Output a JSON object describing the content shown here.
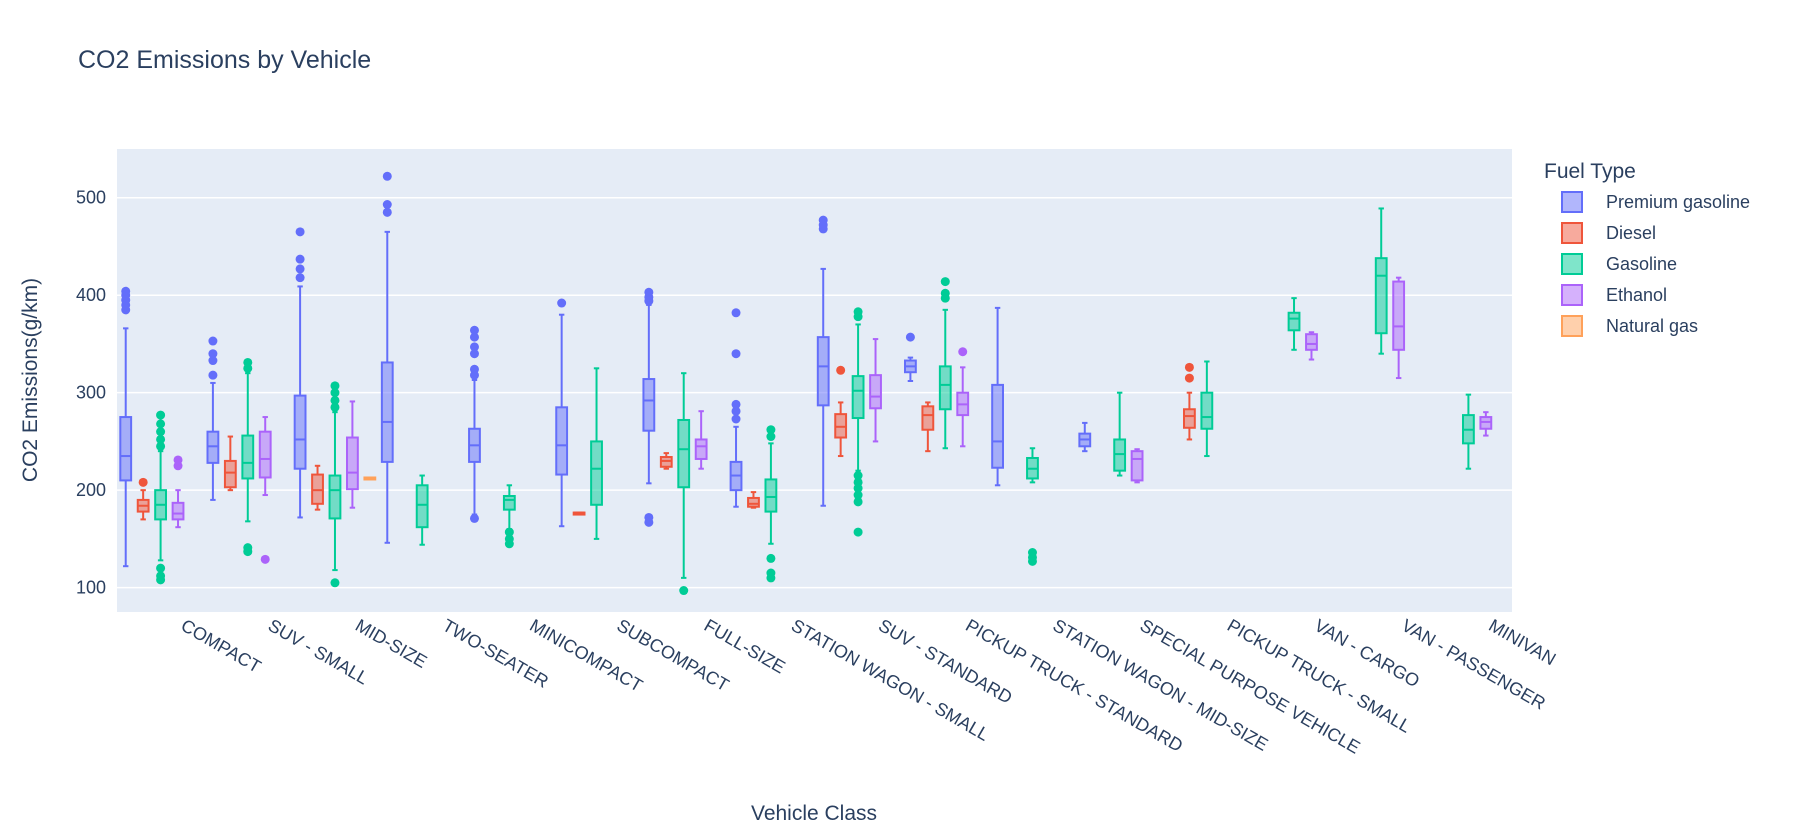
{
  "chart_data": {
    "type": "box",
    "title": "CO2 Emissions by Vehicle",
    "xlabel": "Vehicle Class",
    "ylabel": "CO2 Emissions(g/km)",
    "ylim": [
      75,
      550
    ],
    "yticks": [
      100,
      200,
      300,
      400,
      500
    ],
    "grid": true,
    "legend_title": "Fuel Type",
    "legend_position": "top-right",
    "categories": [
      "COMPACT",
      "SUV - SMALL",
      "MID-SIZE",
      "TWO-SEATER",
      "MINICOMPACT",
      "SUBCOMPACT",
      "FULL-SIZE",
      "STATION WAGON - SMALL",
      "SUV - STANDARD",
      "PICKUP TRUCK - STANDARD",
      "STATION WAGON - MID-SIZE",
      "SPECIAL PURPOSE VEHICLE",
      "PICKUP TRUCK - SMALL",
      "VAN - CARGO",
      "VAN - PASSENGER",
      "MINIVAN"
    ],
    "series": [
      {
        "name": "Premium gasoline",
        "color": "#636efa",
        "boxes": [
          {
            "category": "COMPACT",
            "min": 122,
            "q1": 210,
            "median": 235,
            "q3": 275,
            "max": 366,
            "outliers": [
              385,
              390,
              395,
              400,
              404
            ]
          },
          {
            "category": "SUV - SMALL",
            "min": 190,
            "q1": 228,
            "median": 245,
            "q3": 260,
            "max": 310,
            "outliers": [
              318,
              333,
              340,
              353
            ]
          },
          {
            "category": "MID-SIZE",
            "min": 172,
            "q1": 222,
            "median": 252,
            "q3": 297,
            "max": 409,
            "outliers": [
              418,
              427,
              437,
              465
            ]
          },
          {
            "category": "TWO-SEATER",
            "min": 146,
            "q1": 229,
            "median": 270,
            "q3": 331,
            "max": 465,
            "outliers": [
              485,
              493,
              522
            ]
          },
          {
            "category": "MINICOMPACT",
            "min": 175,
            "q1": 229,
            "median": 246,
            "q3": 263,
            "max": 313,
            "outliers": [
              171,
              318,
              324,
              340,
              347,
              357,
              364
            ]
          },
          {
            "category": "SUBCOMPACT",
            "min": 163,
            "q1": 216,
            "median": 246,
            "q3": 285,
            "max": 380,
            "outliers": [
              392
            ]
          },
          {
            "category": "FULL-SIZE",
            "min": 207,
            "q1": 261,
            "median": 292,
            "q3": 314,
            "max": 390,
            "outliers": [
              167,
              172,
              394,
              398,
              403
            ]
          },
          {
            "category": "STATION WAGON - SMALL",
            "min": 183,
            "q1": 200,
            "median": 215,
            "q3": 229,
            "max": 265,
            "outliers": [
              273,
              281,
              288,
              340,
              382
            ]
          },
          {
            "category": "SUV - STANDARD",
            "min": 184,
            "q1": 287,
            "median": 327,
            "q3": 357,
            "max": 427,
            "outliers": [
              468,
              472,
              477
            ]
          },
          {
            "category": "PICKUP TRUCK - STANDARD",
            "min": 312,
            "q1": 321,
            "median": 327,
            "q3": 333,
            "max": 336,
            "outliers": [
              357
            ]
          },
          {
            "category": "STATION WAGON - MID-SIZE",
            "min": 205,
            "q1": 223,
            "median": 250,
            "q3": 308,
            "max": 387,
            "outliers": []
          },
          {
            "category": "SPECIAL PURPOSE VEHICLE",
            "min": 240,
            "q1": 245,
            "median": 252,
            "q3": 258,
            "max": 269,
            "outliers": []
          }
        ]
      },
      {
        "name": "Diesel",
        "color": "#ef553b",
        "boxes": [
          {
            "category": "COMPACT",
            "min": 170,
            "q1": 178,
            "median": 184,
            "q3": 190,
            "max": 200,
            "outliers": [
              208
            ]
          },
          {
            "category": "SUV - SMALL",
            "min": 200,
            "q1": 203,
            "median": 218,
            "q3": 230,
            "max": 255,
            "outliers": []
          },
          {
            "category": "MID-SIZE",
            "min": 180,
            "q1": 186,
            "median": 200,
            "q3": 216,
            "max": 225,
            "outliers": []
          },
          {
            "category": "SUBCOMPACT",
            "min": 177,
            "q1": 177,
            "median": 177,
            "q3": 177,
            "max": 177,
            "outliers": []
          },
          {
            "category": "FULL-SIZE",
            "min": 222,
            "q1": 224,
            "median": 230,
            "q3": 234,
            "max": 238,
            "outliers": []
          },
          {
            "category": "STATION WAGON - SMALL",
            "min": 182,
            "q1": 183,
            "median": 186,
            "q3": 192,
            "max": 198,
            "outliers": []
          },
          {
            "category": "SUV - STANDARD",
            "min": 235,
            "q1": 254,
            "median": 265,
            "q3": 278,
            "max": 290,
            "outliers": [
              323
            ]
          },
          {
            "category": "PICKUP TRUCK - STANDARD",
            "min": 240,
            "q1": 262,
            "median": 277,
            "q3": 286,
            "max": 290,
            "outliers": []
          },
          {
            "category": "PICKUP TRUCK - SMALL",
            "min": 252,
            "q1": 264,
            "median": 276,
            "q3": 283,
            "max": 300,
            "outliers": [
              315,
              326
            ]
          }
        ]
      },
      {
        "name": "Gasoline",
        "color": "#00cc96",
        "boxes": [
          {
            "category": "COMPACT",
            "min": 128,
            "q1": 170,
            "median": 185,
            "q3": 200,
            "max": 240,
            "outliers": [
              108,
              112,
              120,
              245,
              252,
              260,
              268,
              277
            ]
          },
          {
            "category": "SUV - SMALL",
            "min": 168,
            "q1": 212,
            "median": 228,
            "q3": 256,
            "max": 320,
            "outliers": [
              137,
              141,
              325,
              331
            ]
          },
          {
            "category": "MID-SIZE",
            "min": 118,
            "q1": 171,
            "median": 200,
            "q3": 215,
            "max": 280,
            "outliers": [
              105,
              285,
              292,
              300,
              307
            ]
          },
          {
            "category": "TWO-SEATER",
            "min": 144,
            "q1": 162,
            "median": 185,
            "q3": 205,
            "max": 215,
            "outliers": []
          },
          {
            "category": "MINICOMPACT",
            "min": 160,
            "q1": 180,
            "median": 190,
            "q3": 194,
            "max": 205,
            "outliers": [
              145,
              150,
              157
            ]
          },
          {
            "category": "SUBCOMPACT",
            "min": 150,
            "q1": 185,
            "median": 222,
            "q3": 250,
            "max": 325,
            "outliers": []
          },
          {
            "category": "FULL-SIZE",
            "min": 110,
            "q1": 203,
            "median": 242,
            "q3": 272,
            "max": 320,
            "outliers": [
              97
            ]
          },
          {
            "category": "STATION WAGON - SMALL",
            "min": 145,
            "q1": 178,
            "median": 193,
            "q3": 211,
            "max": 248,
            "outliers": [
              110,
              115,
              130,
              255,
              262
            ]
          },
          {
            "category": "SUV - STANDARD",
            "min": 220,
            "q1": 274,
            "median": 302,
            "q3": 317,
            "max": 370,
            "outliers": [
              157,
              188,
              195,
              202,
              208,
              215,
              378,
              383
            ]
          },
          {
            "category": "PICKUP TRUCK - STANDARD",
            "min": 243,
            "q1": 283,
            "median": 308,
            "q3": 327,
            "max": 385,
            "outliers": [
              397,
              402,
              414
            ]
          },
          {
            "category": "STATION WAGON - MID-SIZE",
            "min": 208,
            "q1": 212,
            "median": 222,
            "q3": 233,
            "max": 243,
            "outliers": [
              127,
              131,
              136
            ]
          },
          {
            "category": "SPECIAL PURPOSE VEHICLE",
            "min": 215,
            "q1": 220,
            "median": 237,
            "q3": 252,
            "max": 300,
            "outliers": []
          },
          {
            "category": "PICKUP TRUCK - SMALL",
            "min": 235,
            "q1": 263,
            "median": 275,
            "q3": 300,
            "max": 332,
            "outliers": []
          },
          {
            "category": "VAN - CARGO",
            "min": 344,
            "q1": 364,
            "median": 376,
            "q3": 382,
            "max": 397,
            "outliers": []
          },
          {
            "category": "VAN - PASSENGER",
            "min": 340,
            "q1": 361,
            "median": 420,
            "q3": 438,
            "max": 489,
            "outliers": []
          },
          {
            "category": "MINIVAN",
            "min": 222,
            "q1": 248,
            "median": 262,
            "q3": 277,
            "max": 298,
            "outliers": []
          }
        ]
      },
      {
        "name": "Ethanol",
        "color": "#ab63fa",
        "boxes": [
          {
            "category": "COMPACT",
            "min": 162,
            "q1": 170,
            "median": 176,
            "q3": 187,
            "max": 200,
            "outliers": [
              225,
              231
            ]
          },
          {
            "category": "SUV - SMALL",
            "min": 195,
            "q1": 213,
            "median": 232,
            "q3": 260,
            "max": 275,
            "outliers": [
              129
            ]
          },
          {
            "category": "MID-SIZE",
            "min": 182,
            "q1": 201,
            "median": 218,
            "q3": 254,
            "max": 291,
            "outliers": []
          },
          {
            "category": "FULL-SIZE",
            "min": 222,
            "q1": 232,
            "median": 245,
            "q3": 252,
            "max": 281,
            "outliers": []
          },
          {
            "category": "SUV - STANDARD",
            "min": 250,
            "q1": 284,
            "median": 296,
            "q3": 318,
            "max": 355,
            "outliers": []
          },
          {
            "category": "PICKUP TRUCK - STANDARD",
            "min": 245,
            "q1": 277,
            "median": 288,
            "q3": 300,
            "max": 326,
            "outliers": [
              342
            ]
          },
          {
            "category": "SPECIAL PURPOSE VEHICLE",
            "min": 208,
            "q1": 210,
            "median": 232,
            "q3": 240,
            "max": 242,
            "outliers": []
          },
          {
            "category": "VAN - CARGO",
            "min": 334,
            "q1": 344,
            "median": 350,
            "q3": 360,
            "max": 362,
            "outliers": []
          },
          {
            "category": "VAN - PASSENGER",
            "min": 315,
            "q1": 344,
            "median": 368,
            "q3": 414,
            "max": 418,
            "outliers": []
          },
          {
            "category": "MINIVAN",
            "min": 256,
            "q1": 263,
            "median": 270,
            "q3": 275,
            "max": 280,
            "outliers": []
          }
        ]
      },
      {
        "name": "Natural gas",
        "color": "#ffa15a",
        "boxes": [
          {
            "category": "MID-SIZE",
            "min": 213,
            "q1": 213,
            "median": 213,
            "q3": 213,
            "max": 213,
            "outliers": []
          }
        ]
      }
    ]
  }
}
